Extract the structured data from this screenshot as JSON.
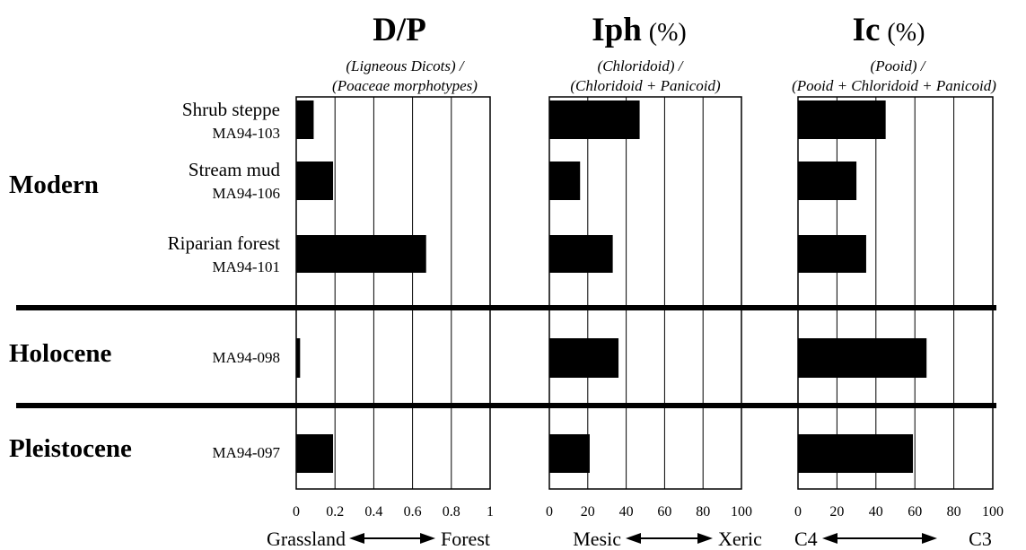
{
  "chart_data": [
    {
      "type": "bar",
      "orientation": "horizontal",
      "title": "D/P",
      "title_unit": "",
      "subtitle_lines": [
        "(Ligneous Dicots)  /",
        "(Poaceae morphotypes)"
      ],
      "xlim": [
        0,
        1
      ],
      "ticks": [
        "0",
        "0.2",
        "0.4",
        "0.6",
        "0.8",
        "1"
      ],
      "tick_values": [
        0,
        0.2,
        0.4,
        0.6,
        0.8,
        1
      ],
      "scale_left": "Grassland",
      "scale_right": "Forest",
      "categories": [
        "MA94-103",
        "MA94-106",
        "MA94-101",
        "MA94-098",
        "MA94-097"
      ],
      "values": [
        0.09,
        0.19,
        0.67,
        0.02,
        0.19
      ]
    },
    {
      "type": "bar",
      "orientation": "horizontal",
      "title": "Iph",
      "title_unit": "(%)",
      "subtitle_lines": [
        "(Chloridoid)  /",
        "(Chloridoid + Panicoid)"
      ],
      "xlim": [
        0,
        100
      ],
      "ticks": [
        "0",
        "20",
        "40",
        "60",
        "80",
        "100"
      ],
      "tick_values": [
        0,
        20,
        40,
        60,
        80,
        100
      ],
      "scale_left": "Mesic",
      "scale_right": "Xeric",
      "categories": [
        "MA94-103",
        "MA94-106",
        "MA94-101",
        "MA94-098",
        "MA94-097"
      ],
      "values": [
        47,
        16,
        33,
        36,
        21
      ]
    },
    {
      "type": "bar",
      "orientation": "horizontal",
      "title": "Ic",
      "title_unit": "(%)",
      "subtitle_lines": [
        "(Pooid) /",
        "(Pooid + Chloridoid + Panicoid)"
      ],
      "xlim": [
        0,
        100
      ],
      "ticks": [
        "0",
        "20",
        "40",
        "60",
        "80",
        "100"
      ],
      "tick_values": [
        0,
        20,
        40,
        60,
        80,
        100
      ],
      "scale_left": "C4",
      "scale_right": "C3",
      "categories": [
        "MA94-103",
        "MA94-106",
        "MA94-101",
        "MA94-098",
        "MA94-097"
      ],
      "values": [
        45,
        30,
        35,
        66,
        59
      ]
    }
  ],
  "groups": [
    {
      "label": "Modern",
      "samples": [
        {
          "name": "Shrub steppe",
          "code": "MA94-103"
        },
        {
          "name": "Stream mud",
          "code": "MA94-106"
        },
        {
          "name": "Riparian forest",
          "code": "MA94-101"
        }
      ]
    },
    {
      "label": "Holocene",
      "samples": [
        {
          "name": "",
          "code": "MA94-098"
        }
      ]
    },
    {
      "label": "Pleistocene",
      "samples": [
        {
          "name": "",
          "code": "MA94-097"
        }
      ]
    }
  ],
  "colors": {
    "bar": "#000000",
    "gridline": "#000000",
    "background": "#ffffff"
  }
}
